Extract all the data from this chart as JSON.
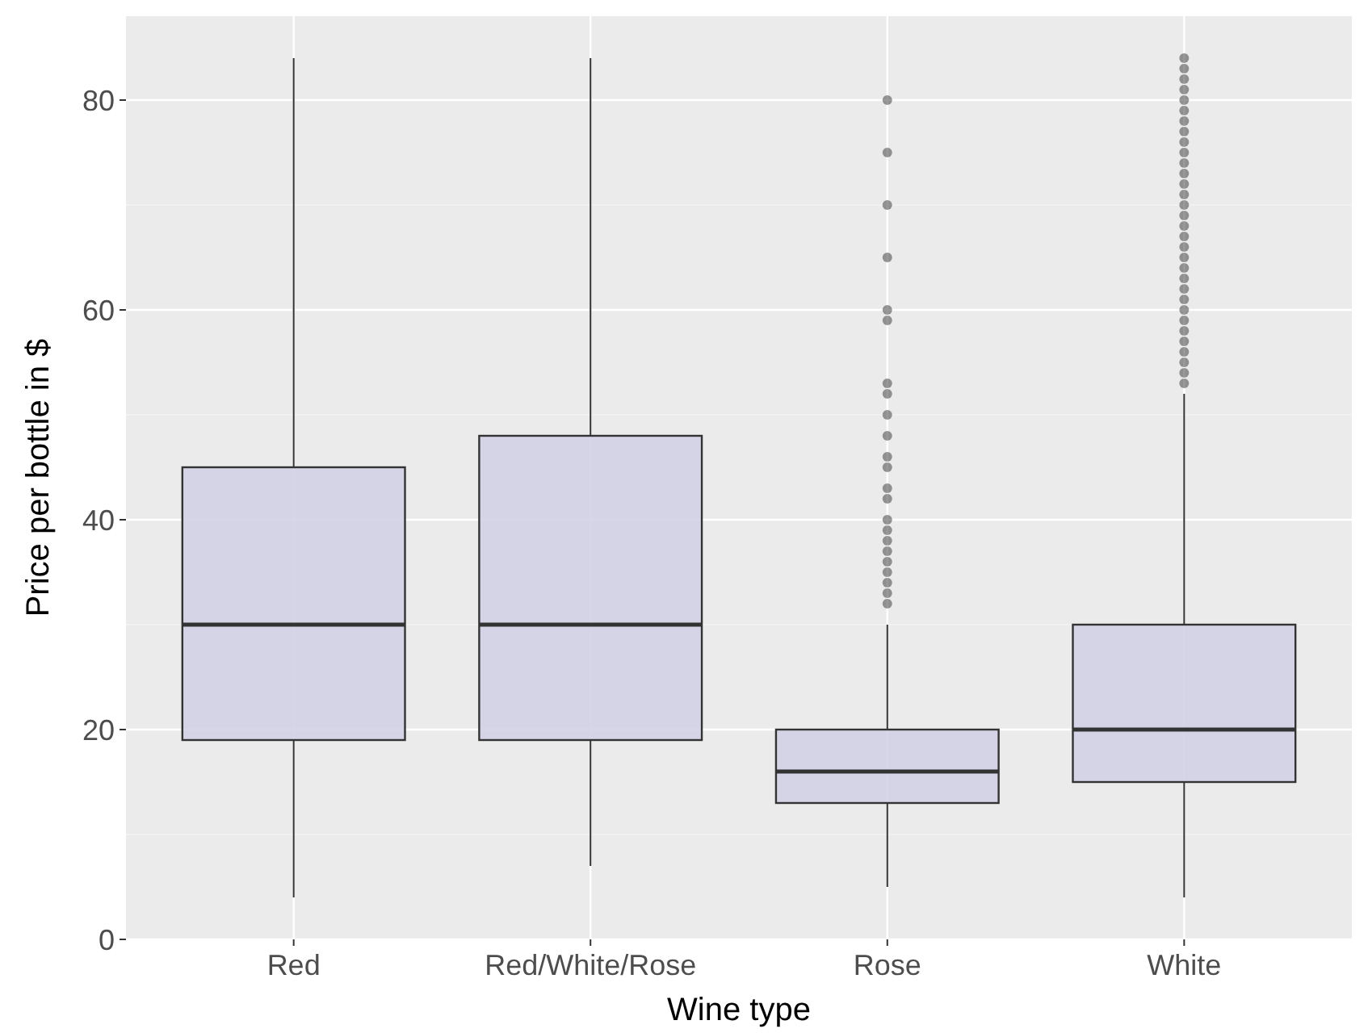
{
  "chart_data": {
    "type": "box",
    "xlabel": "Wine type",
    "ylabel": "Price per bottle in $",
    "categories": [
      "Red",
      "Red/White/Rose",
      "Rose",
      "White"
    ],
    "color": "#d3d1e6",
    "ylim": [
      0,
      88
    ],
    "yticks": [
      0,
      20,
      40,
      60,
      80
    ],
    "grid": true,
    "boxes": [
      {
        "low": 4,
        "q1": 19,
        "median": 30,
        "q3": 45,
        "high": 84
      },
      {
        "low": 7,
        "q1": 19,
        "median": 30,
        "q3": 48,
        "high": 84
      },
      {
        "low": 5,
        "q1": 13,
        "median": 16,
        "q3": 20,
        "high": 30,
        "outliers": [
          80,
          75,
          70,
          65,
          60,
          59,
          53,
          52,
          50,
          48,
          46,
          45,
          43,
          42,
          40,
          39,
          38,
          37,
          36,
          35,
          34,
          33,
          32
        ]
      },
      {
        "low": 4,
        "q1": 15,
        "median": 20,
        "q3": 30,
        "high": 52,
        "outliers": [
          53,
          54,
          55,
          56,
          57,
          58,
          59,
          60,
          61,
          62,
          63,
          64,
          65,
          66,
          67,
          68,
          69,
          70,
          71,
          72,
          73,
          74,
          75,
          76,
          77,
          78,
          79,
          80,
          81,
          82,
          83,
          84
        ]
      }
    ]
  }
}
